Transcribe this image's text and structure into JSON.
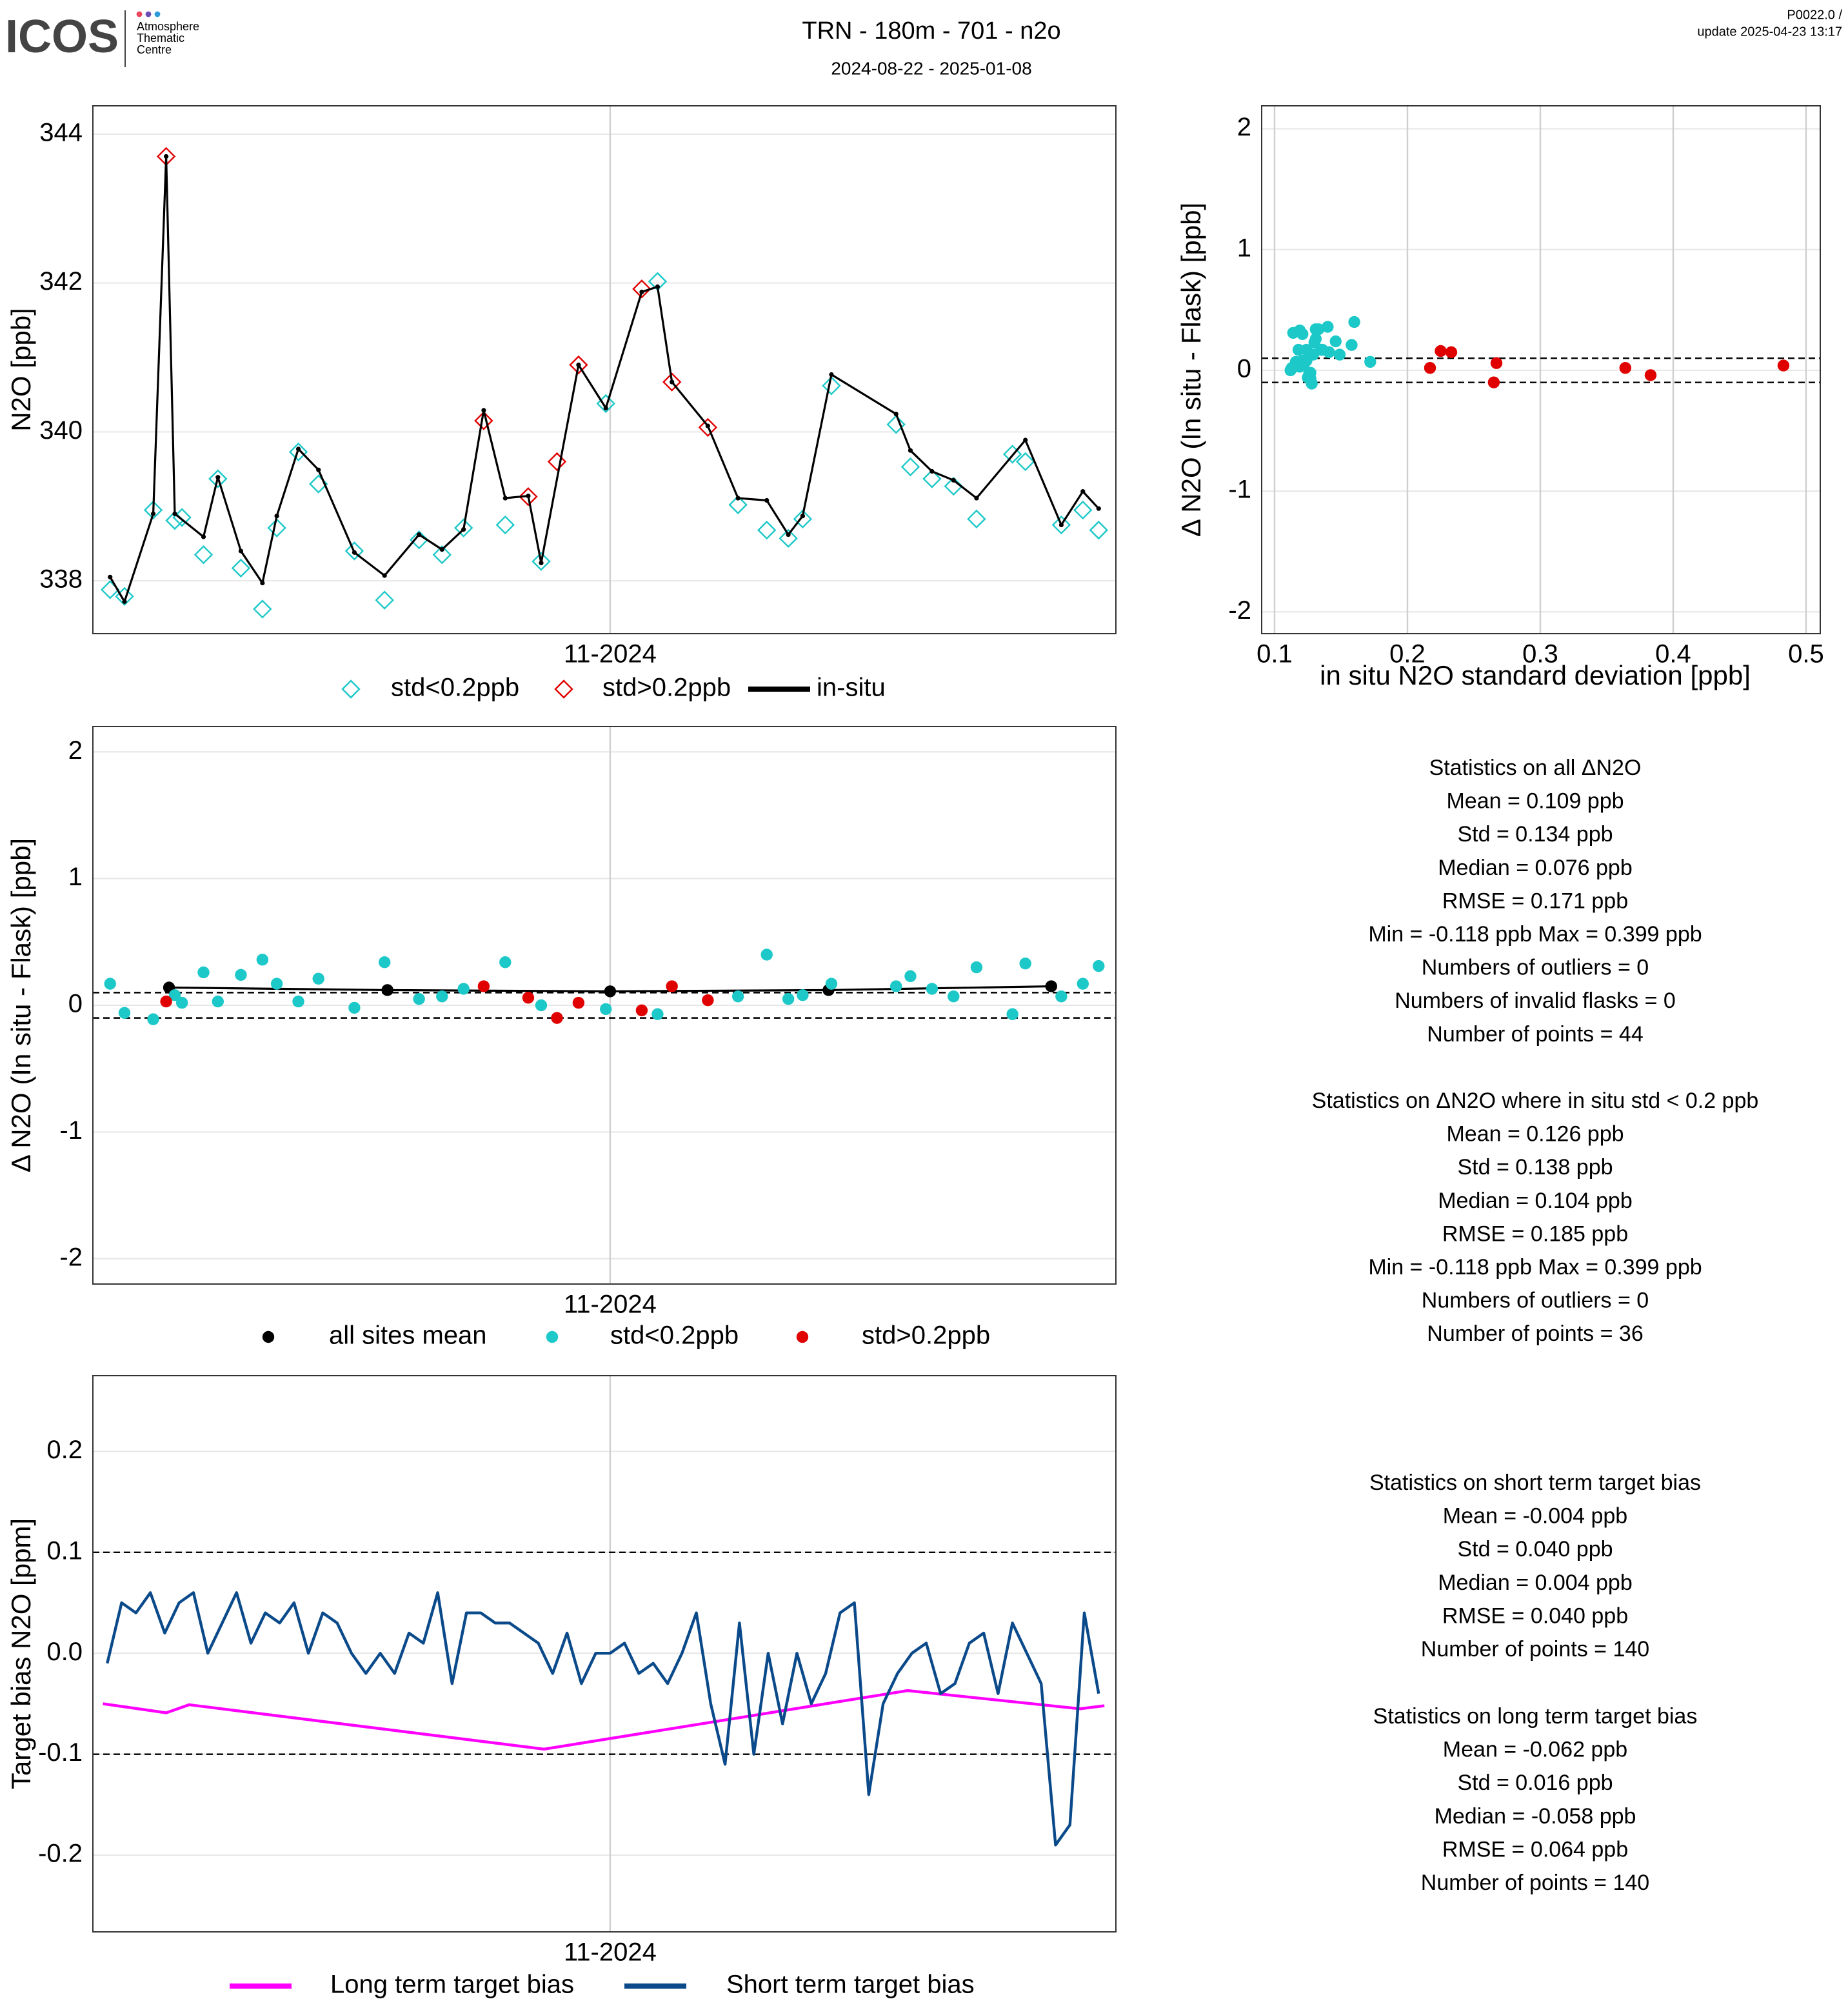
{
  "header": {
    "logo": "ICOS",
    "logo_lines": [
      "Atmosphere",
      "Thematic",
      "Centre"
    ],
    "title": "TRN - 180m - 701 - n2o",
    "subtitle": "2024-08-22 - 2025-01-08",
    "version": "P0022.0 /",
    "update": "update  2025-04-23 13:17"
  },
  "chart_data": [
    {
      "type": "line",
      "ylabel": "N2O [ppb]",
      "xlim": [
        270.0,
        341.2
      ],
      "ylim": [
        337.29,
        344.38
      ],
      "xticks": [
        {
          "value": 306,
          "label": "11-2024"
        }
      ],
      "yticks": [
        338,
        340,
        342,
        344
      ],
      "grid": true,
      "series": [
        {
          "name": "std<0.2ppb",
          "color": "#1cc8c8",
          "marker": "diamond-open",
          "line": false,
          "x": [
            271.2,
            272.2,
            274.2,
            275.7,
            276.2,
            277.7,
            278.7,
            280.3,
            281.8,
            282.8,
            284.3,
            285.7,
            288.2,
            290.3,
            292.7,
            294.3,
            295.8,
            298.7,
            301.2,
            305.7,
            309.3,
            314.9,
            316.9,
            318.4,
            319.4,
            321.4,
            325.9,
            326.9,
            328.4,
            329.9,
            331.5,
            334.0,
            334.9,
            337.4,
            338.9,
            340.0
          ],
          "values": [
            337.88,
            337.79,
            338.95,
            338.81,
            338.85,
            338.35,
            339.37,
            338.17,
            337.62,
            338.71,
            339.73,
            339.3,
            338.4,
            337.74,
            338.55,
            338.35,
            338.71,
            338.75,
            338.26,
            340.38,
            342.02,
            339.02,
            338.68,
            338.57,
            338.83,
            340.62,
            340.1,
            339.53,
            339.37,
            339.27,
            338.83,
            339.7,
            339.6,
            338.75,
            338.95,
            338.68
          ]
        },
        {
          "name": "std>0.2ppb",
          "color": "#e00000",
          "marker": "diamond-open",
          "line": false,
          "x": [
            275.1,
            297.2,
            300.3,
            302.3,
            303.8,
            308.2,
            310.3,
            312.8
          ],
          "values": [
            343.7,
            340.15,
            339.13,
            339.6,
            340.9,
            341.92,
            340.67,
            340.06
          ]
        },
        {
          "name": "in-situ",
          "color": "#000000",
          "marker": "dot",
          "line": true,
          "x": [
            271.2,
            272.2,
            274.2,
            275.1,
            275.7,
            277.7,
            278.7,
            280.3,
            281.8,
            282.8,
            284.3,
            285.7,
            288.2,
            290.3,
            292.7,
            294.3,
            295.8,
            297.2,
            298.7,
            300.3,
            301.2,
            303.8,
            305.7,
            308.2,
            309.3,
            310.3,
            312.8,
            314.9,
            316.9,
            318.4,
            319.4,
            321.4,
            325.9,
            326.9,
            328.4,
            329.9,
            331.5,
            334.9,
            337.4,
            338.9,
            340.0
          ],
          "values": [
            338.05,
            337.72,
            338.9,
            343.7,
            338.9,
            338.59,
            339.39,
            338.4,
            337.97,
            338.87,
            339.77,
            339.49,
            338.38,
            338.07,
            338.62,
            338.42,
            338.69,
            340.29,
            339.11,
            339.14,
            338.24,
            340.9,
            340.32,
            341.88,
            341.95,
            340.67,
            340.08,
            339.11,
            339.08,
            338.62,
            338.87,
            340.77,
            340.24,
            339.75,
            339.47,
            339.35,
            339.11,
            339.89,
            338.75,
            339.2,
            338.97
          ]
        }
      ]
    },
    {
      "type": "scatter",
      "xlabel": "in situ N2O standard deviation [ppb]",
      "ylabel": "Δ N2O (In situ - Flask) [ppb]",
      "xlim": [
        0.0903,
        0.5107
      ],
      "ylim": [
        -2.18,
        2.19
      ],
      "xticks": [
        0.1,
        0.2,
        0.3,
        0.4,
        0.5
      ],
      "yticks": [
        -2,
        -1,
        0,
        1,
        2
      ],
      "grid": true,
      "hlines": [
        0.1,
        -0.1
      ],
      "series": [
        {
          "name": "std<0.2ppb",
          "color": "#1cc8c8",
          "marker": "circle",
          "line": false,
          "x": [
            0.118,
            0.125,
            0.128,
            0.121,
            0.113,
            0.131,
            0.115,
            0.146,
            0.14,
            0.124,
            0.119,
            0.158,
            0.127,
            0.133,
            0.122,
            0.116,
            0.129,
            0.131,
            0.112,
            0.126,
            0.127,
            0.12,
            0.16,
            0.117,
            0.124,
            0.136,
            0.141,
            0.13,
            0.149,
            0.123,
            0.121,
            0.127,
            0.119,
            0.172,
            0.135,
            0.114
          ],
          "values": [
            0.17,
            -0.06,
            -0.11,
            0.08,
            0.02,
            0.26,
            0.03,
            0.24,
            0.36,
            0.17,
            0.03,
            0.21,
            -0.02,
            0.34,
            0.05,
            0.07,
            0.13,
            0.34,
            0,
            -0.03,
            -0.07,
            0.07,
            0.4,
            0.05,
            0.08,
            0.17,
            0.15,
            0.23,
            0.13,
            0.07,
            0.3,
            -0.07,
            0.33,
            0.07,
            0.17,
            0.31
          ]
        },
        {
          "name": "std>0.2ppb",
          "color": "#e00000",
          "marker": "circle",
          "line": false,
          "x": [
            0.217,
            0.225,
            0.233,
            0.265,
            0.267,
            0.364,
            0.383,
            0.483
          ],
          "values": [
            0.02,
            0.16,
            0.15,
            -0.1,
            0.06,
            0.02,
            -0.04,
            0.04
          ]
        }
      ]
    },
    {
      "type": "line",
      "ylabel": "Δ N2O (In situ - Flask) [ppb]",
      "xlim": [
        270.0,
        341.2
      ],
      "ylim": [
        -2.2,
        2.2
      ],
      "xticks": [
        {
          "value": 306,
          "label": "11-2024"
        }
      ],
      "yticks": [
        -2,
        -1,
        0,
        1,
        2
      ],
      "grid": true,
      "hlines": [
        0.1,
        -0.1
      ],
      "series": [
        {
          "name": "all sites mean",
          "color": "#000000",
          "marker": "circle",
          "line": true,
          "x": [
            275.3,
            290.5,
            306.0,
            321.2,
            336.7
          ],
          "values": [
            0.14,
            0.12,
            0.11,
            0.12,
            0.15
          ]
        },
        {
          "name": "std<0.2ppb",
          "color": "#1cc8c8",
          "marker": "circle",
          "line": false,
          "x": [
            271.2,
            272.2,
            274.2,
            275.7,
            276.2,
            277.7,
            278.7,
            280.3,
            281.8,
            282.8,
            284.3,
            285.7,
            288.2,
            290.3,
            292.7,
            294.3,
            295.8,
            298.7,
            301.2,
            305.7,
            309.3,
            314.9,
            316.9,
            318.4,
            319.4,
            321.4,
            325.9,
            326.9,
            328.4,
            329.9,
            331.5,
            334.0,
            334.9,
            337.4,
            338.9,
            340.0
          ],
          "values": [
            0.17,
            -0.06,
            -0.11,
            0.08,
            0.02,
            0.26,
            0.03,
            0.24,
            0.36,
            0.17,
            0.03,
            0.21,
            -0.02,
            0.34,
            0.05,
            0.07,
            0.13,
            0.34,
            0,
            -0.03,
            -0.07,
            0.07,
            0.4,
            0.05,
            0.08,
            0.17,
            0.15,
            0.23,
            0.13,
            0.07,
            0.3,
            -0.07,
            0.33,
            0.07,
            0.17,
            0.31
          ]
        },
        {
          "name": "std>0.2ppb",
          "color": "#e00000",
          "marker": "circle",
          "line": false,
          "x": [
            275.1,
            297.2,
            300.3,
            302.3,
            303.8,
            308.2,
            310.3,
            312.8
          ],
          "values": [
            0.03,
            0.15,
            0.06,
            -0.1,
            0.02,
            -0.04,
            0.15,
            0.04
          ]
        }
      ]
    },
    {
      "type": "line",
      "ylabel": "Target bias N2O [ppm]",
      "xlim": [
        270.0,
        341.2
      ],
      "ylim": [
        -0.276,
        0.275
      ],
      "xticks": [
        {
          "value": 306,
          "label": "11-2024"
        }
      ],
      "yticks": [
        -0.2,
        -0.1,
        {
          "value": 0,
          "label": "0.0"
        },
        0.1,
        0.2
      ],
      "grid": true,
      "hlines": [
        0.1,
        -0.1
      ],
      "series": [
        {
          "name": "Long term target bias",
          "color": "#ff00ff",
          "marker": "none",
          "line": true,
          "x": [
            270.7,
            275.1,
            276.7,
            301.4,
            326.7,
            338.7,
            340.4
          ],
          "values": [
            -0.05,
            -0.059,
            -0.051,
            -0.095,
            -0.037,
            -0.055,
            -0.052
          ]
        },
        {
          "name": "Short term target bias",
          "color": "#0b4a8a",
          "marker": "none",
          "line": true,
          "x": [
            271,
            272,
            273,
            274,
            275,
            276,
            277,
            278,
            279,
            280,
            281,
            282,
            283,
            284,
            285,
            286,
            287,
            288,
            289,
            290,
            291,
            292,
            293,
            294,
            295,
            296,
            297,
            298,
            299,
            300,
            301,
            302,
            303,
            304,
            305,
            306,
            307,
            308,
            309,
            310,
            311,
            312,
            313,
            314,
            315,
            316,
            317,
            318,
            319,
            320,
            321,
            322,
            323,
            324,
            325,
            326,
            327,
            328,
            329,
            330,
            331,
            332,
            333,
            334,
            335,
            336,
            337,
            338,
            339,
            340
          ],
          "values": [
            -0.01,
            0.05,
            0.04,
            0.06,
            0.02,
            0.05,
            0.06,
            0,
            0.03,
            0.06,
            0.01,
            0.04,
            0.03,
            0.05,
            0,
            0.04,
            0.03,
            0,
            -0.02,
            0,
            -0.02,
            0.02,
            0.01,
            0.06,
            -0.03,
            0.04,
            0.04,
            0.03,
            0.03,
            0.02,
            0.01,
            -0.02,
            0.02,
            -0.03,
            0,
            0,
            0.01,
            -0.02,
            -0.01,
            -0.03,
            0,
            0.04,
            -0.05,
            -0.11,
            0.03,
            -0.1,
            0,
            -0.07,
            0,
            -0.05,
            -0.02,
            0.04,
            0.05,
            -0.14,
            -0.05,
            -0.02,
            0,
            0.01,
            -0.04,
            -0.03,
            0.01,
            0.02,
            -0.04,
            0.03,
            0,
            -0.03,
            -0.19,
            -0.17,
            0.04,
            -0.04
          ]
        }
      ]
    }
  ],
  "stats": [
    {
      "title": "Statistics on all ΔN2O",
      "lines": [
        "Mean =  0.109 ppb",
        "Std =  0.134 ppb",
        "Median =  0.076 ppb",
        "RMSE =  0.171 ppb",
        "Min =  -0.118 ppb Max =  0.399 ppb",
        "Numbers of outliers =  0",
        "Numbers of invalid flasks =  0",
        "Number of points =  44"
      ]
    },
    {
      "title": "Statistics on ΔN2O where in situ std < 0.2 ppb",
      "lines": [
        "Mean =  0.126 ppb",
        "Std =  0.138 ppb",
        "Median =  0.104 ppb",
        "RMSE =  0.185 ppb",
        "Min =  -0.118 ppb Max =  0.399 ppb",
        "Numbers of outliers =  0",
        "Number of points =  36"
      ]
    },
    {
      "title": "Statistics on short term target bias",
      "lines": [
        "Mean =  -0.004 ppb",
        "Std =  0.040 ppb",
        "Median =  0.004 ppb",
        "RMSE =  0.040 ppb",
        "Number of points =  140"
      ]
    },
    {
      "title": "Statistics on long term target bias",
      "lines": [
        "Mean =  -0.062 ppb",
        "Std =  0.016 ppb",
        "Median =  -0.058 ppb",
        "RMSE =  0.064 ppb",
        "Number of points =  140"
      ]
    }
  ]
}
